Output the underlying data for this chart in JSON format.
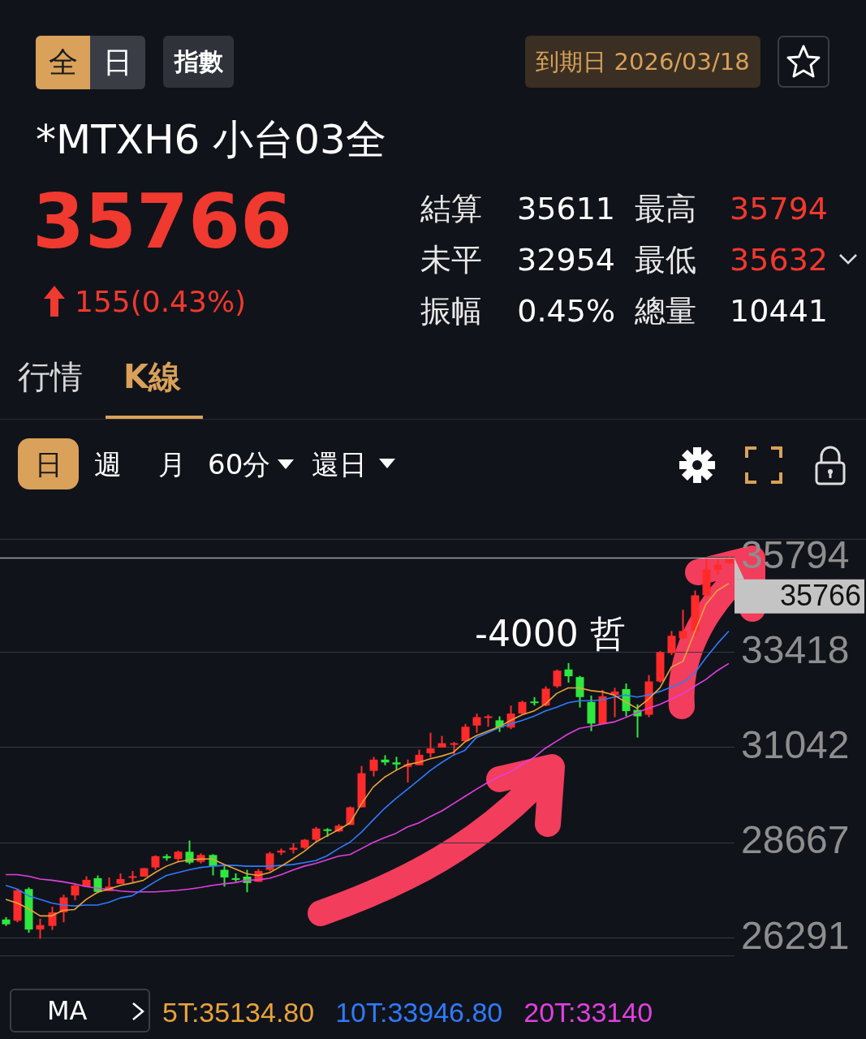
{
  "chart_data": {
    "type": "candlestick",
    "title": "*MTXH6 小台03全",
    "categories": [
      null,
      null,
      null,
      null,
      null,
      null,
      null,
      null,
      null,
      null,
      null,
      null,
      null,
      null,
      null,
      null,
      null,
      null,
      null,
      null,
      null,
      null,
      null,
      null,
      null,
      null,
      null,
      null,
      null,
      null,
      null,
      null,
      null,
      null,
      null,
      null,
      null,
      null,
      null,
      null,
      null,
      null,
      null,
      null,
      null,
      null,
      null,
      null,
      null,
      null,
      null,
      null,
      null,
      null,
      null,
      null,
      null,
      null,
      null,
      null,
      null,
      null,
      null,
      null
    ],
    "ohlc": [
      [
        26750,
        26810,
        26590,
        26630
      ],
      [
        26720,
        27510,
        26680,
        27480
      ],
      [
        27510,
        27550,
        26420,
        26500
      ],
      [
        26500,
        26770,
        26270,
        26610
      ],
      [
        26590,
        27070,
        26490,
        26930
      ],
      [
        26930,
        27370,
        26680,
        27300
      ],
      [
        27350,
        27640,
        27230,
        27600
      ],
      [
        27570,
        27830,
        27570,
        27740
      ],
      [
        27780,
        27850,
        27410,
        27440
      ],
      [
        27460,
        27800,
        27460,
        27570
      ],
      [
        27640,
        27900,
        27640,
        27760
      ],
      [
        27800,
        27960,
        27660,
        27830
      ],
      [
        27820,
        28040,
        27820,
        28030
      ],
      [
        28050,
        28350,
        27990,
        28330
      ],
      [
        28330,
        28380,
        28220,
        28280
      ],
      [
        28260,
        28470,
        28190,
        28440
      ],
      [
        28440,
        28720,
        28130,
        28170
      ],
      [
        28190,
        28400,
        28150,
        28360
      ],
      [
        28360,
        28380,
        27850,
        28080
      ],
      [
        27990,
        28080,
        27570,
        27800
      ],
      [
        27780,
        27900,
        27690,
        27740
      ],
      [
        27820,
        27990,
        27430,
        27660
      ],
      [
        27690,
        28010,
        27690,
        27960
      ],
      [
        27990,
        28440,
        27960,
        28400
      ],
      [
        28420,
        28520,
        28360,
        28470
      ],
      [
        28490,
        28650,
        28400,
        28540
      ],
      [
        28540,
        28760,
        28510,
        28740
      ],
      [
        28740,
        29060,
        28700,
        29020
      ],
      [
        29000,
        29030,
        28810,
        28990
      ],
      [
        28950,
        29130,
        28930,
        29090
      ],
      [
        29110,
        29570,
        29110,
        29550
      ],
      [
        29550,
        30580,
        29550,
        30400
      ],
      [
        30460,
        30810,
        30320,
        30740
      ],
      [
        30740,
        30850,
        30600,
        30670
      ],
      [
        30670,
        30810,
        30480,
        30620
      ],
      [
        30560,
        30740,
        30170,
        30620
      ],
      [
        30600,
        30990,
        30600,
        30860
      ],
      [
        30900,
        31410,
        30790,
        31020
      ],
      [
        31040,
        31330,
        31040,
        31150
      ],
      [
        31130,
        31180,
        30850,
        31150
      ],
      [
        31200,
        31630,
        31200,
        31560
      ],
      [
        31590,
        31890,
        31410,
        31800
      ],
      [
        31790,
        31860,
        31560,
        31820
      ],
      [
        31720,
        31820,
        31430,
        31540
      ],
      [
        31540,
        32090,
        31500,
        31890
      ],
      [
        31890,
        32210,
        31860,
        32180
      ],
      [
        32190,
        32300,
        32090,
        32160
      ],
      [
        32090,
        32570,
        32070,
        32510
      ],
      [
        32570,
        32990,
        32530,
        32960
      ],
      [
        32990,
        33150,
        32660,
        32820
      ],
      [
        32800,
        32830,
        32040,
        32300
      ],
      [
        32180,
        32340,
        31450,
        31640
      ],
      [
        31630,
        32480,
        31630,
        32320
      ],
      [
        32350,
        32530,
        31800,
        32440
      ],
      [
        32500,
        32640,
        31820,
        31950
      ],
      [
        31980,
        32120,
        31290,
        31820
      ],
      [
        31860,
        32850,
        31800,
        32690
      ],
      [
        32690,
        33450,
        32660,
        33420
      ],
      [
        33400,
        33950,
        33350,
        33830
      ],
      [
        33770,
        34480,
        33750,
        33950
      ],
      [
        33950,
        34960,
        33840,
        34840
      ],
      [
        34840,
        35780,
        34820,
        35490
      ],
      [
        35480,
        35780,
        35350,
        35610
      ],
      [
        35640,
        35794,
        35632,
        35766
      ]
    ],
    "colors": [
      "#2ee83f",
      "#ff2b2b",
      "#2ee83f",
      "#ff2b2b",
      "#ff2b2b",
      "#ff2b2b",
      "#ff2b2b",
      "#ff2b2b",
      "#2ee83f",
      "#ff2b2b",
      "#ff2b2b",
      "#ff2b2b",
      "#ff2b2b",
      "#ff2b2b",
      "#2ee83f",
      "#ff2b2b",
      "#2ee83f",
      "#ff2b2b",
      "#2ee83f",
      "#2ee83f",
      "#2ee83f",
      "#2ee83f",
      "#ff2b2b",
      "#ff2b2b",
      "#ff2b2b",
      "#ff2b2b",
      "#ff2b2b",
      "#ff2b2b",
      "#2ee83f",
      "#ff2b2b",
      "#ff2b2b",
      "#ff2b2b",
      "#ff2b2b",
      "#2ee83f",
      "#2ee83f",
      "#ff2b2b",
      "#ff2b2b",
      "#ff2b2b",
      "#ff2b2b",
      "#ff2b2b",
      "#ff2b2b",
      "#ff2b2b",
      "#ff2b2b",
      "#2ee83f",
      "#ff2b2b",
      "#ff2b2b",
      "#2ee83f",
      "#ff2b2b",
      "#ff2b2b",
      "#2ee83f",
      "#2ee83f",
      "#2ee83f",
      "#ff2b2b",
      "#ff2b2b",
      "#2ee83f",
      "#2ee83f",
      "#ff2b2b",
      "#ff2b2b",
      "#ff2b2b",
      "#ff2b2b",
      "#ff2b2b",
      "#ff2b2b",
      "#ff2b2b",
      "#ff2b2b"
    ],
    "series": [
      {
        "name": "5T:35134.80",
        "type": "line",
        "color": "#e8a33d",
        "values": [
          27250,
          27160,
          27020,
          26840,
          26840,
          26980,
          27000,
          27250,
          27430,
          27510,
          27600,
          27660,
          27730,
          27920,
          28080,
          28190,
          28240,
          28260,
          28260,
          28130,
          28010,
          27890,
          27850,
          27920,
          28080,
          28260,
          28450,
          28680,
          28840,
          28990,
          29160,
          29640,
          30050,
          30300,
          30470,
          30620,
          30670,
          30760,
          30830,
          30920,
          31180,
          31340,
          31450,
          31560,
          31720,
          31860,
          31950,
          32120,
          32390,
          32530,
          32530,
          32460,
          32430,
          32350,
          32180,
          32020,
          32250,
          32530,
          33050,
          33190,
          33900,
          34610,
          34960,
          35134.8
        ]
      },
      {
        "name": "10T:33946.80",
        "type": "line",
        "color": "#2f7bff",
        "values": [
          27600,
          27510,
          27340,
          27250,
          27160,
          27110,
          27090,
          27110,
          27110,
          27180,
          27290,
          27340,
          27510,
          27690,
          27850,
          27920,
          27990,
          28050,
          28080,
          28100,
          28100,
          28080,
          28080,
          28080,
          28100,
          28120,
          28170,
          28220,
          28340,
          28520,
          28680,
          28930,
          29230,
          29520,
          29770,
          30000,
          30230,
          30470,
          30670,
          30850,
          30970,
          31290,
          31410,
          31540,
          31630,
          31720,
          31820,
          31950,
          32050,
          32160,
          32210,
          32210,
          32230,
          32300,
          32350,
          32300,
          32350,
          32440,
          32550,
          32660,
          32890,
          33280,
          33630,
          33946.8
        ]
      },
      {
        "name": "20T:33140",
        "type": "line",
        "color": "#e040e0",
        "values": [
          27870,
          27870,
          27830,
          27760,
          27730,
          27690,
          27640,
          27570,
          27530,
          27500,
          27460,
          27440,
          27440,
          27440,
          27460,
          27480,
          27510,
          27550,
          27600,
          27640,
          27670,
          27730,
          27740,
          27780,
          27870,
          27980,
          28080,
          28150,
          28240,
          28330,
          28370,
          28520,
          28670,
          28790,
          28900,
          29060,
          29160,
          29320,
          29460,
          29640,
          29820,
          30000,
          30170,
          30320,
          30440,
          30620,
          30790,
          31020,
          31200,
          31380,
          31520,
          31570,
          31630,
          31680,
          31790,
          31910,
          32020,
          32120,
          32250,
          32390,
          32570,
          32740,
          32960,
          33140
        ]
      }
    ],
    "ylim": [
      25830,
      36250
    ],
    "yticks": [
      26291,
      28667,
      31042,
      33418,
      35794
    ],
    "grid": "y",
    "tick_labels": "y",
    "legend": "bottom",
    "legend_title": "MA",
    "ref_lines": [
      {
        "axis": "y",
        "value": 35766,
        "label": "35766",
        "color": "#c4c4c4"
      }
    ],
    "annotations": [
      "全",
      "日",
      "指數",
      "到期日 2026/03/18",
      "35766",
      "155(0.43%)",
      "結算",
      "35611",
      "最高",
      "35794",
      "未平",
      "32954",
      "最低",
      "35632",
      "振幅",
      "0.45%",
      "總量",
      "10441",
      "行情",
      "K線",
      "日",
      "週",
      "月",
      "60分",
      "還日",
      "-4000 哲"
    ]
  }
}
